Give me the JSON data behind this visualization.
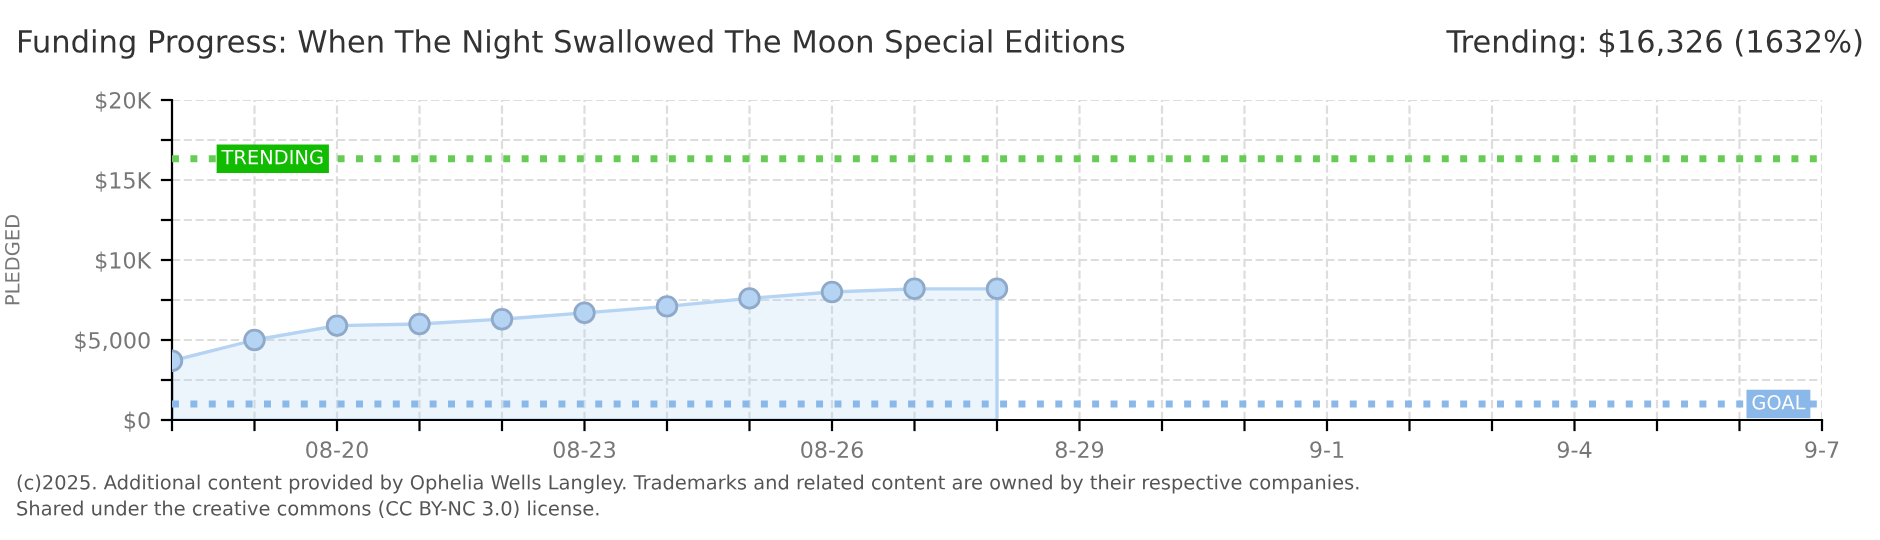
{
  "chart_data": {
    "type": "area",
    "title": "Funding Progress: When The Night Swallowed The Moon Special Editions",
    "subtitle": "Trending: $16,326 (1632%)",
    "ylabel": "PLEDGED",
    "x": [
      "2025-08-18",
      "2025-08-19",
      "2025-08-20",
      "2025-08-21",
      "2025-08-22",
      "2025-08-23",
      "2025-08-24",
      "2025-08-25",
      "2025-08-26",
      "2025-08-27",
      "2025-08-28"
    ],
    "series": [
      {
        "color": "#b5d3f3",
        "values": [
          3700,
          5000,
          5900,
          6000,
          6300,
          6700,
          7100,
          7600,
          8000,
          8200,
          8200
        ]
      }
    ],
    "marker": "circle",
    "grid": true,
    "xlim": [
      "2025-08-18",
      "2025-09-07"
    ],
    "xticks": [
      {
        "value": "2025-08-18",
        "label": null
      },
      {
        "value": "2025-08-19",
        "label": null
      },
      {
        "value": "2025-08-20",
        "label": "08-20"
      },
      {
        "value": "2025-08-21",
        "label": null
      },
      {
        "value": "2025-08-22",
        "label": null
      },
      {
        "value": "2025-08-23",
        "label": "08-23"
      },
      {
        "value": "2025-08-24",
        "label": null
      },
      {
        "value": "2025-08-25",
        "label": null
      },
      {
        "value": "2025-08-26",
        "label": "08-26"
      },
      {
        "value": "2025-08-27",
        "label": null
      },
      {
        "value": "2025-08-28",
        "label": null
      },
      {
        "value": "2025-08-29",
        "label": "8-29"
      },
      {
        "value": "2025-08-30",
        "label": null
      },
      {
        "value": "2025-08-31",
        "label": null
      },
      {
        "value": "2025-09-01",
        "label": "9-1"
      },
      {
        "value": "2025-09-02",
        "label": null
      },
      {
        "value": "2025-09-03",
        "label": null
      },
      {
        "value": "2025-09-04",
        "label": "9-4"
      },
      {
        "value": "2025-09-05",
        "label": null
      },
      {
        "value": "2025-09-06",
        "label": null
      },
      {
        "value": "2025-09-07",
        "label": "9-7"
      }
    ],
    "ylim": [
      0,
      20000
    ],
    "yticks": [
      {
        "value": 0,
        "label": "$0"
      },
      {
        "value": 2500,
        "label": null
      },
      {
        "value": 5000,
        "label": "$5,000"
      },
      {
        "value": 7500,
        "label": null
      },
      {
        "value": 10000,
        "label": "$10K"
      },
      {
        "value": 12500,
        "label": null
      },
      {
        "value": 15000,
        "label": "$15K"
      },
      {
        "value": 17500,
        "label": null
      },
      {
        "value": 20000,
        "label": "$20K"
      }
    ],
    "ref_lines": [
      {
        "axis": "y",
        "value": 16326,
        "label": "TRENDING",
        "color": "#66cc55",
        "line_style": "dotted"
      },
      {
        "axis": "y",
        "value": 1000,
        "label": "GOAL",
        "color": "#8ab8e8",
        "line_style": "dotted"
      }
    ],
    "annotations": [
      "(c)2025. Additional content provided by Ophelia Wells Langley. Trademarks and related content are owned by their respective companies.",
      "Shared under the creative commons (CC BY-NC 3.0) license."
    ]
  }
}
